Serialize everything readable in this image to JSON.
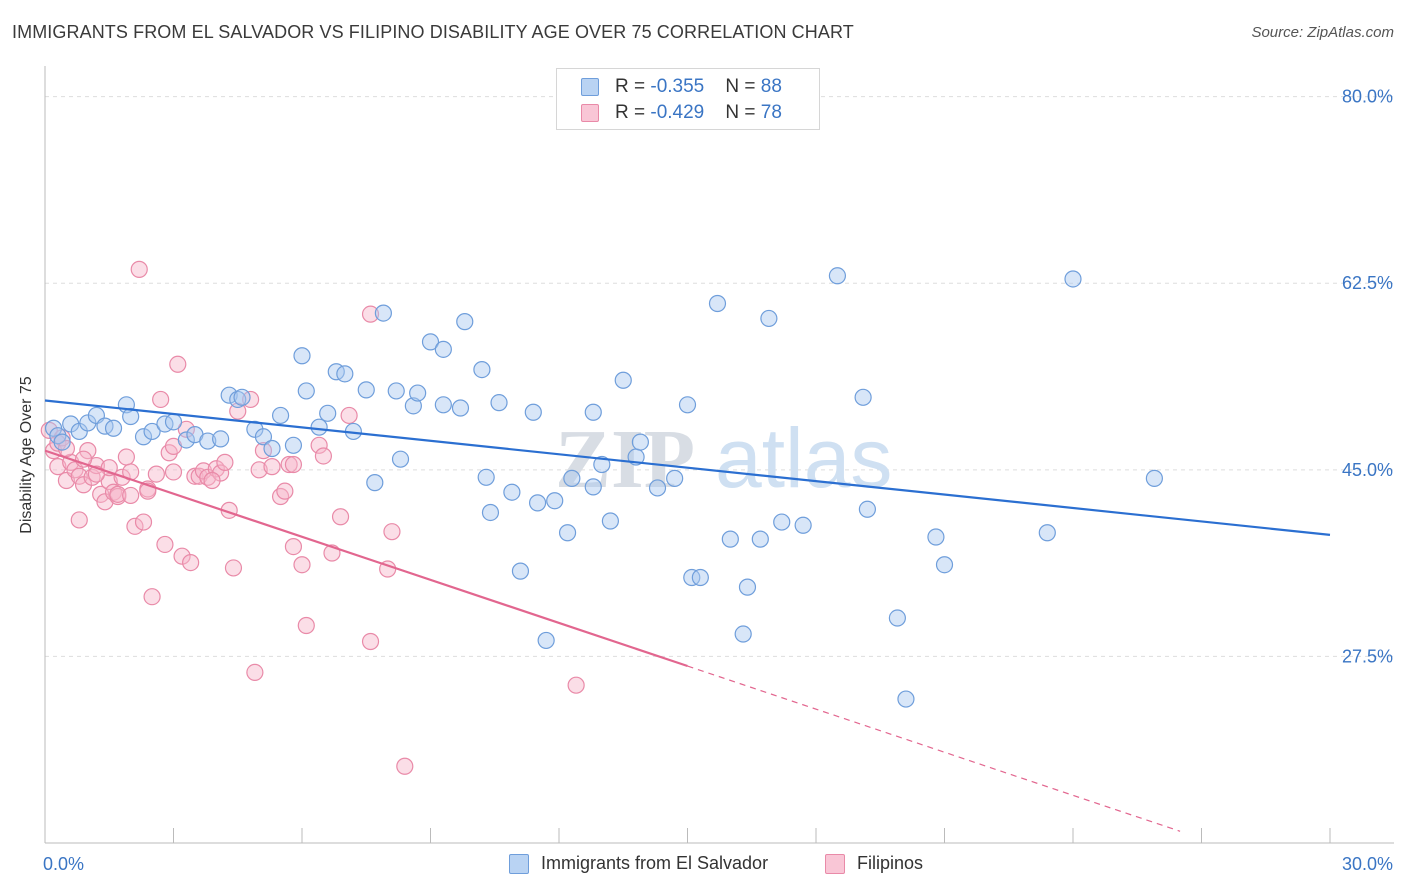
{
  "header": {
    "title": "IMMIGRANTS FROM EL SALVADOR VS FILIPINO DISABILITY AGE OVER 75 CORRELATION CHART",
    "source": "Source: ZipAtlas.com"
  },
  "colors": {
    "blue_fill": "#a9c8f0",
    "blue_stroke": "#6f9edb",
    "blue_line": "#2b6fd1",
    "pink_fill": "#f6b5c9",
    "pink_stroke": "#e98aa8",
    "pink_line": "#e2668f",
    "tick_text": "#3a75c4"
  },
  "legend": {
    "rows": [
      {
        "r_label": "R = ",
        "r_value": "-0.355",
        "n_label": "N = ",
        "n_value": "88"
      },
      {
        "r_label": "R = ",
        "r_value": "-0.429",
        "n_label": "N = ",
        "n_value": "78"
      }
    ],
    "bottom": [
      "Immigrants from El Salvador",
      "Filipinos"
    ]
  },
  "watermark": {
    "part1": "ZIP",
    "part2": "atlas"
  },
  "chart_data": {
    "type": "scatter",
    "title": "IMMIGRANTS FROM EL SALVADOR VS FILIPINO DISABILITY AGE OVER 75 CORRELATION CHART",
    "xlabel": "",
    "ylabel": "Disability Age Over 75",
    "xlim": [
      0,
      30
    ],
    "ylim": [
      10,
      82.5
    ],
    "x_tick_labels": [
      "0.0%",
      "30.0%"
    ],
    "y_ticks": [
      27.5,
      45.0,
      62.5,
      80.0
    ],
    "y_tick_labels": [
      "27.5%",
      "45.0%",
      "62.5%",
      "80.0%"
    ],
    "grid": true,
    "legend_position": "top-center",
    "series": [
      {
        "name": "Immigrants from El Salvador",
        "color": "#a9c8f0",
        "trend": {
          "x": [
            0,
            30
          ],
          "y": [
            51.5,
            38.9
          ]
        },
        "points": [
          [
            0.2,
            48.9
          ],
          [
            0.3,
            48.2
          ],
          [
            0.4,
            47.6
          ],
          [
            0.6,
            49.3
          ],
          [
            0.8,
            48.6
          ],
          [
            1.0,
            49.4
          ],
          [
            1.2,
            50.1
          ],
          [
            1.4,
            49.1
          ],
          [
            1.6,
            48.9
          ],
          [
            1.9,
            51.1
          ],
          [
            2.0,
            50.0
          ],
          [
            2.3,
            48.1
          ],
          [
            2.5,
            48.6
          ],
          [
            2.8,
            49.3
          ],
          [
            3.0,
            49.5
          ],
          [
            3.3,
            47.8
          ],
          [
            3.5,
            48.3
          ],
          [
            3.8,
            47.7
          ],
          [
            4.1,
            47.9
          ],
          [
            4.3,
            52.0
          ],
          [
            4.5,
            51.6
          ],
          [
            4.6,
            51.8
          ],
          [
            4.9,
            48.8
          ],
          [
            5.1,
            48.1
          ],
          [
            5.3,
            47.0
          ],
          [
            5.5,
            50.1
          ],
          [
            5.8,
            47.3
          ],
          [
            6.0,
            55.7
          ],
          [
            6.1,
            52.4
          ],
          [
            6.4,
            49.0
          ],
          [
            6.6,
            50.3
          ],
          [
            6.8,
            54.2
          ],
          [
            7.0,
            54.0
          ],
          [
            7.2,
            48.6
          ],
          [
            7.5,
            52.5
          ],
          [
            7.7,
            43.8
          ],
          [
            7.9,
            59.7
          ],
          [
            8.2,
            52.4
          ],
          [
            8.3,
            46.0
          ],
          [
            8.6,
            51.0
          ],
          [
            8.7,
            52.2
          ],
          [
            9.0,
            57.0
          ],
          [
            9.3,
            56.3
          ],
          [
            9.3,
            51.1
          ],
          [
            9.7,
            50.8
          ],
          [
            9.8,
            58.9
          ],
          [
            10.2,
            54.4
          ],
          [
            10.3,
            44.3
          ],
          [
            10.4,
            41.0
          ],
          [
            10.6,
            51.3
          ],
          [
            10.9,
            42.9
          ],
          [
            11.1,
            35.5
          ],
          [
            11.4,
            50.4
          ],
          [
            11.5,
            41.9
          ],
          [
            11.7,
            29.0
          ],
          [
            11.9,
            42.1
          ],
          [
            12.2,
            39.1
          ],
          [
            12.3,
            44.2
          ],
          [
            12.8,
            43.4
          ],
          [
            12.8,
            50.4
          ],
          [
            13.0,
            45.5
          ],
          [
            13.2,
            40.2
          ],
          [
            13.5,
            53.4
          ],
          [
            13.8,
            46.2
          ],
          [
            13.9,
            47.6
          ],
          [
            14.3,
            43.3
          ],
          [
            14.7,
            44.2
          ],
          [
            15.0,
            51.1
          ],
          [
            15.1,
            34.9
          ],
          [
            15.3,
            34.9
          ],
          [
            15.7,
            60.6
          ],
          [
            16.0,
            38.5
          ],
          [
            16.3,
            29.6
          ],
          [
            16.4,
            34.0
          ],
          [
            16.7,
            38.5
          ],
          [
            16.9,
            59.2
          ],
          [
            17.2,
            40.1
          ],
          [
            17.7,
            39.8
          ],
          [
            18.5,
            63.2
          ],
          [
            19.1,
            51.8
          ],
          [
            19.2,
            41.3
          ],
          [
            19.9,
            31.1
          ],
          [
            20.1,
            23.5
          ],
          [
            20.8,
            38.7
          ],
          [
            21.0,
            36.1
          ],
          [
            23.4,
            39.1
          ],
          [
            24.0,
            62.9
          ],
          [
            25.9,
            44.2
          ]
        ]
      },
      {
        "name": "Filipinos",
        "color": "#f6b5c9",
        "trend": {
          "x": [
            0,
            15
          ],
          "y": [
            46.8,
            26.6
          ]
        },
        "trend_extension": {
          "x": [
            15,
            26.5
          ],
          "y": [
            26.6,
            11.1
          ]
        },
        "points": [
          [
            0.1,
            48.7
          ],
          [
            0.2,
            46.8
          ],
          [
            0.3,
            47.5
          ],
          [
            0.3,
            45.3
          ],
          [
            0.4,
            48.0
          ],
          [
            0.5,
            44.0
          ],
          [
            0.6,
            45.7
          ],
          [
            0.7,
            45.0
          ],
          [
            0.8,
            44.4
          ],
          [
            0.8,
            40.3
          ],
          [
            0.9,
            43.6
          ],
          [
            1.0,
            46.8
          ],
          [
            1.1,
            44.3
          ],
          [
            1.2,
            45.4
          ],
          [
            1.3,
            42.7
          ],
          [
            1.4,
            42.0
          ],
          [
            1.5,
            43.9
          ],
          [
            1.6,
            42.9
          ],
          [
            1.7,
            42.5
          ],
          [
            1.7,
            42.7
          ],
          [
            1.8,
            44.3
          ],
          [
            1.9,
            46.2
          ],
          [
            2.0,
            44.8
          ],
          [
            2.0,
            42.6
          ],
          [
            2.1,
            39.7
          ],
          [
            2.2,
            63.8
          ],
          [
            2.3,
            40.1
          ],
          [
            2.4,
            43.2
          ],
          [
            2.5,
            33.1
          ],
          [
            2.6,
            44.6
          ],
          [
            2.7,
            51.6
          ],
          [
            2.8,
            38.0
          ],
          [
            2.9,
            46.6
          ],
          [
            3.0,
            44.8
          ],
          [
            3.1,
            54.9
          ],
          [
            3.2,
            36.9
          ],
          [
            3.3,
            48.8
          ],
          [
            3.4,
            36.3
          ],
          [
            3.5,
            44.4
          ],
          [
            3.6,
            44.4
          ],
          [
            3.7,
            44.9
          ],
          [
            3.8,
            44.3
          ],
          [
            4.0,
            45.1
          ],
          [
            4.1,
            44.7
          ],
          [
            4.2,
            45.7
          ],
          [
            4.3,
            41.2
          ],
          [
            4.4,
            35.8
          ],
          [
            4.5,
            50.5
          ],
          [
            4.8,
            51.6
          ],
          [
            4.9,
            26.0
          ],
          [
            5.0,
            45.0
          ],
          [
            5.1,
            46.8
          ],
          [
            5.3,
            45.3
          ],
          [
            5.5,
            42.5
          ],
          [
            5.6,
            43.0
          ],
          [
            5.7,
            45.5
          ],
          [
            5.8,
            37.8
          ],
          [
            5.8,
            45.5
          ],
          [
            6.0,
            36.1
          ],
          [
            6.1,
            30.4
          ],
          [
            6.4,
            47.3
          ],
          [
            6.5,
            46.3
          ],
          [
            6.7,
            37.2
          ],
          [
            6.9,
            40.6
          ],
          [
            7.1,
            50.1
          ],
          [
            7.6,
            59.6
          ],
          [
            7.6,
            28.9
          ],
          [
            8.0,
            35.7
          ],
          [
            8.1,
            39.2
          ],
          [
            8.4,
            17.2
          ],
          [
            12.4,
            24.8
          ],
          [
            0.5,
            47.0
          ],
          [
            0.9,
            46.0
          ],
          [
            1.5,
            45.2
          ],
          [
            2.4,
            43.0
          ],
          [
            3.0,
            47.2
          ],
          [
            3.9,
            44.0
          ],
          [
            1.2,
            44.6
          ]
        ]
      }
    ]
  }
}
